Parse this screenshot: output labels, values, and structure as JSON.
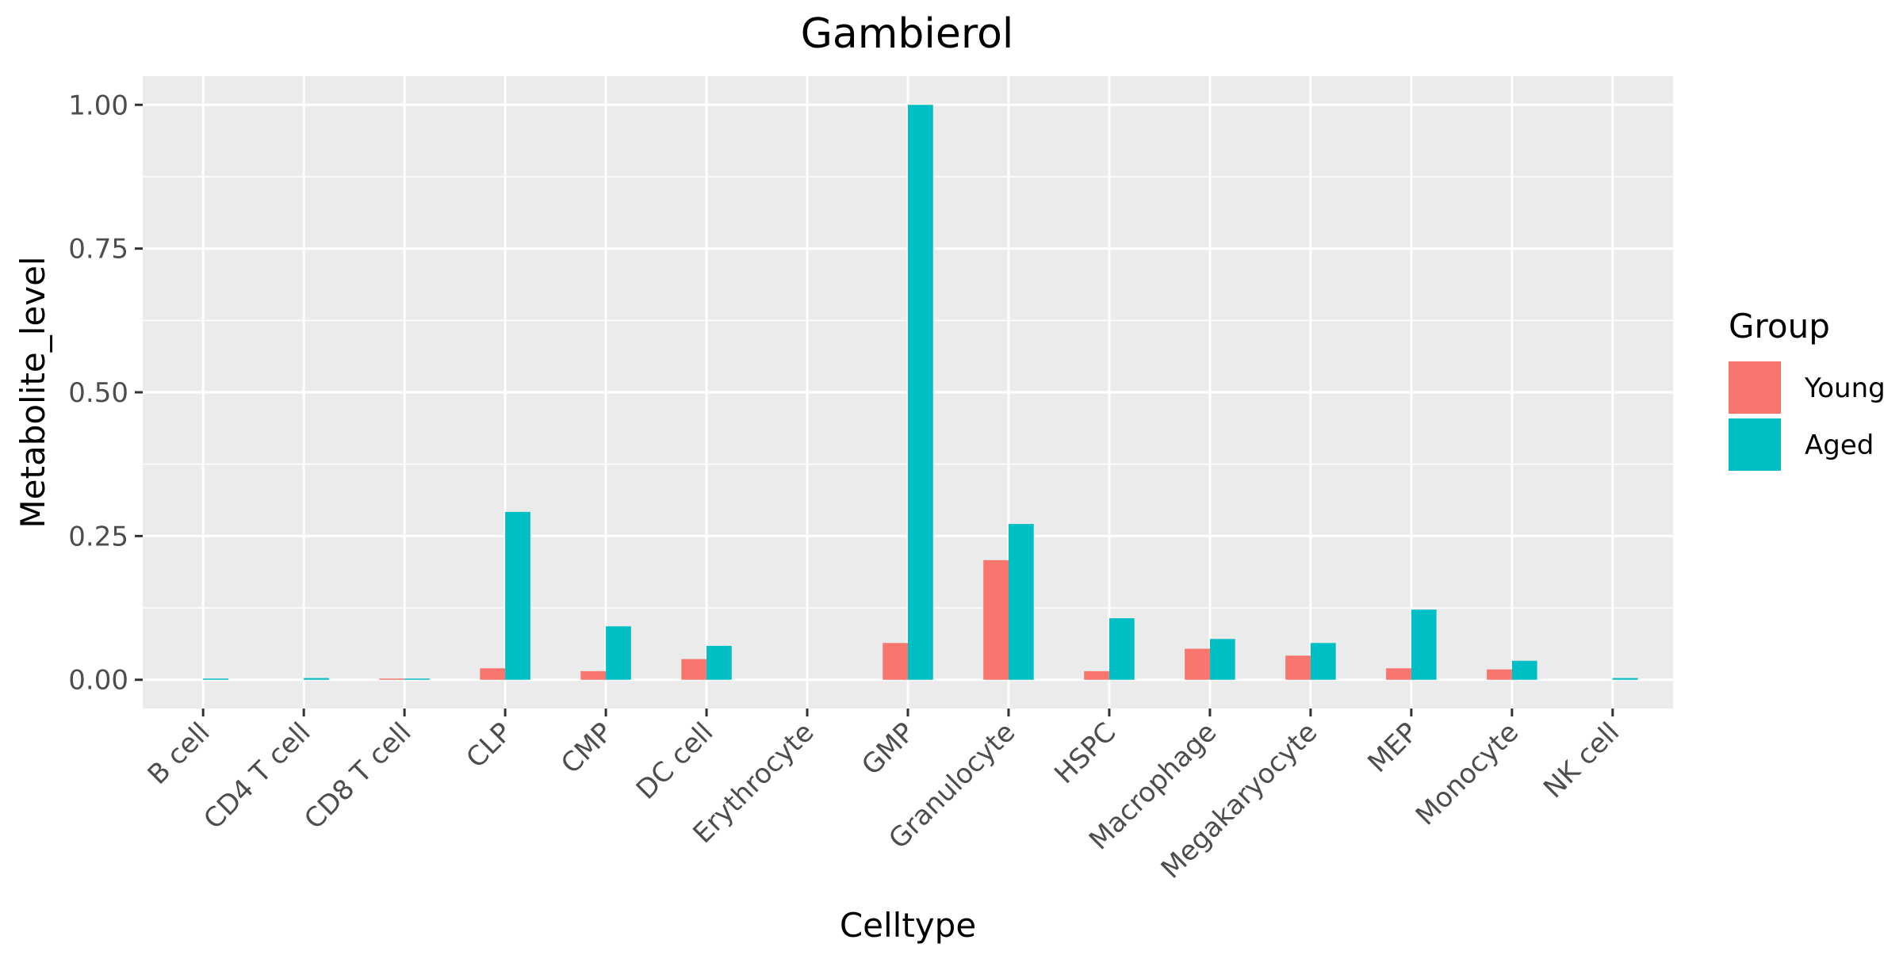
{
  "chart_data": {
    "type": "bar",
    "title": "Gambierol",
    "xlabel": "Celltype",
    "ylabel": "Metabolite_level",
    "categories": [
      "B cell",
      "CD4 T cell",
      "CD8 T cell",
      "CLP",
      "CMP",
      "DC cell",
      "Erythrocyte",
      "GMP",
      "Granulocyte",
      "HSPC",
      "Macrophage",
      "Megakaryocyte",
      "MEP",
      "Monocyte",
      "NK cell"
    ],
    "series": [
      {
        "name": "Young",
        "color": "#F8766D",
        "values": [
          0.0,
          0.0,
          0.001,
          0.02,
          0.015,
          0.036,
          0.0,
          0.064,
          0.208,
          0.015,
          0.054,
          0.042,
          0.02,
          0.018,
          0.0
        ]
      },
      {
        "name": "Aged",
        "color": "#00BFC4",
        "values": [
          0.001,
          0.003,
          0.001,
          0.292,
          0.093,
          0.059,
          0.0,
          1.0,
          0.271,
          0.107,
          0.071,
          0.064,
          0.122,
          0.033,
          0.003
        ]
      }
    ],
    "ylim": [
      -0.05,
      1.05
    ],
    "yticks": [
      0.0,
      0.25,
      0.5,
      0.75,
      1.0
    ],
    "ytick_labels": [
      "0.00",
      "0.25",
      "0.50",
      "0.75",
      "1.00"
    ],
    "grid": true,
    "legend": {
      "title": "Group",
      "position": "right"
    }
  }
}
